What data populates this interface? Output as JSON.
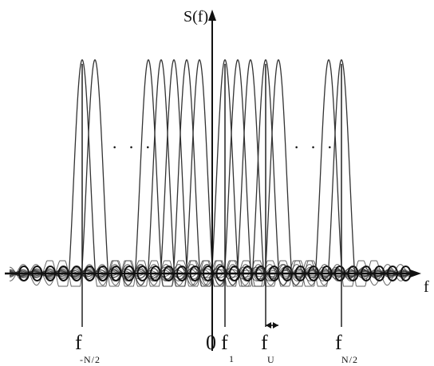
{
  "diagram": {
    "y_axis_label": "S(f)",
    "x_axis_label": "f",
    "origin_label": "0",
    "ellipsis_left": "· · ·",
    "ellipsis_right": "· · ·",
    "markers": [
      {
        "id": "neg-n-half",
        "main": "f",
        "sub": "-N/2"
      },
      {
        "id": "one",
        "main": "f",
        "sub": "1"
      },
      {
        "id": "u",
        "main": "f",
        "sub": "U"
      },
      {
        "id": "n-half",
        "main": "f",
        "sub": "N/2"
      }
    ],
    "active_subcarriers": [
      {
        "group": "left-edge",
        "count": 2
      },
      {
        "group": "left-inner",
        "count": 5
      },
      {
        "group": "right-inner",
        "count": 5
      },
      {
        "group": "right-edge",
        "count": 2
      }
    ],
    "colors": {
      "curve": "#333333",
      "axis": "#111111",
      "background": "#ffffff"
    }
  }
}
